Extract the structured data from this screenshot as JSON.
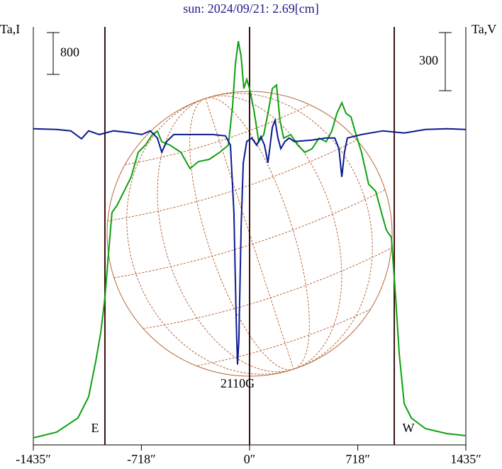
{
  "chart_data": {
    "type": "line",
    "title": "sun: 2024/09/21: 2.69[cm]",
    "ylabel": "Ta,I",
    "y2label": "Ta,V",
    "xlim": [
      -1435,
      1435
    ],
    "xticks": [
      {
        "value": -1435,
        "label": "-1435″"
      },
      {
        "value": -718,
        "label": "-718″"
      },
      {
        "value": 0,
        "label": "0″"
      },
      {
        "value": 718,
        "label": "718″"
      },
      {
        "value": 1435,
        "label": "1435″"
      }
    ],
    "ylim": [
      0,
      8000
    ],
    "y2lim": [
      -1630,
      530
    ],
    "scale_bars": [
      {
        "axis": "y",
        "value": 800
      },
      {
        "axis": "y2",
        "value": 300
      }
    ],
    "limbs": [
      {
        "x": -960,
        "label": "E"
      },
      {
        "x": 0
      },
      {
        "x": 960,
        "label": "W"
      }
    ],
    "annotations": [
      {
        "text": "2110G",
        "x": -80
      }
    ],
    "series": [
      {
        "name": "I",
        "color": "#10a010",
        "x": [
          -1435,
          -1280,
          -1139,
          -1068,
          -1021,
          -988,
          -960,
          -941,
          -913,
          -880,
          -833,
          -786,
          -739,
          -692,
          -645,
          -612,
          -583,
          -527,
          -456,
          -395,
          -339,
          -268,
          -198,
          -141,
          -113,
          -94,
          -75,
          -56,
          -38,
          -19,
          0,
          28,
          61,
          94,
          122,
          151,
          179,
          202,
          226,
          273,
          320,
          367,
          414,
          461,
          508,
          546,
          579,
          612,
          640,
          673,
          706,
          743,
          790,
          837,
          875,
          908,
          941,
          969,
          993,
          1026,
          1073,
          1167,
          1308,
          1435
        ],
        "values": [
          136,
          244,
          515,
          922,
          1600,
          2142,
          2820,
          3498,
          4448,
          4583,
          4855,
          5126,
          5600,
          5736,
          5939,
          6007,
          5804,
          5736,
          5600,
          5288,
          5424,
          5465,
          5600,
          5736,
          6482,
          7295,
          7729,
          7431,
          6821,
          6997,
          6821,
          6414,
          5804,
          5939,
          6346,
          6821,
          6888,
          6210,
          5871,
          5939,
          5736,
          5600,
          5668,
          5871,
          5804,
          6007,
          6346,
          6549,
          6346,
          6278,
          5939,
          5600,
          4990,
          4855,
          4448,
          4109,
          3973,
          2820,
          1736,
          786,
          515,
          312,
          217,
          176
        ]
      },
      {
        "name": "V",
        "color": "#0a1a90",
        "axis": "y2",
        "x": [
          -1435,
          -1280,
          -1186,
          -1115,
          -1068,
          -997,
          -903,
          -809,
          -715,
          -659,
          -612,
          -583,
          -550,
          -503,
          -386,
          -245,
          -160,
          -127,
          -104,
          -89,
          -80,
          -71,
          -56,
          -42,
          -19,
          14,
          47,
          75,
          99,
          122,
          151,
          169,
          188,
          207,
          235,
          263,
          296,
          414,
          508,
          565,
          593,
          612,
          630,
          649,
          743,
          885,
          1026,
          1167,
          1308,
          1435
        ],
        "values": [
          4,
          0,
          -7,
          -48,
          -7,
          -26,
          -7,
          -15,
          -26,
          -7,
          -44,
          -117,
          -62,
          -26,
          -26,
          -26,
          -33,
          -81,
          -429,
          -978,
          -1215,
          -1087,
          -501,
          -172,
          -62,
          -44,
          -81,
          -37,
          -81,
          -172,
          11,
          48,
          -44,
          -99,
          -62,
          -44,
          -62,
          -55,
          -44,
          -44,
          -99,
          -245,
          -117,
          -44,
          -26,
          -7,
          -18,
          0,
          4,
          0
        ]
      }
    ]
  }
}
